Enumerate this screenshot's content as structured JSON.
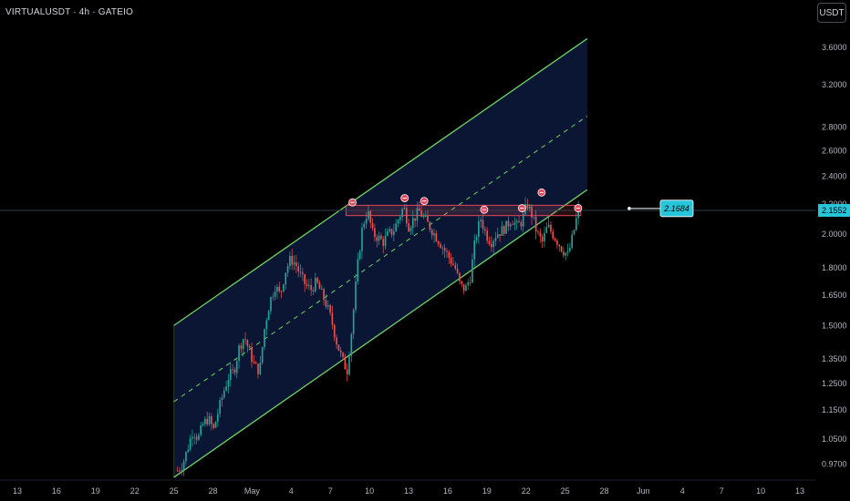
{
  "header": {
    "symbol": "VIRTUALUSDT",
    "interval": "4h",
    "exchange": "GATEIO",
    "title": "VIRTUALUSDT · 4h · GATEIO"
  },
  "toolbar": {
    "currency_label": "USDT"
  },
  "colors": {
    "background": "#000000",
    "channel_fill": "#0a1633",
    "channel_line": "#6fd464",
    "midline": "#6fd464",
    "resistance_box": "#e0475a",
    "bull_candle": "#26a69a",
    "bear_candle": "#ef5350",
    "price_line": "#2f3b4d",
    "callout": "#26c6da",
    "price_tag": "#26c6da",
    "marker": "#e0475a"
  },
  "chart_data": {
    "type": "candlestick",
    "scale": "log",
    "y_ticks": [
      "3.6000",
      "3.2000",
      "2.8000",
      "2.6000",
      "2.4000",
      "2.2000",
      "2.0000",
      "1.8000",
      "1.6500",
      "1.5000",
      "1.3500",
      "1.2500",
      "1.1500",
      "1.0500",
      "0.9700"
    ],
    "x_ticks": [
      "13",
      "16",
      "19",
      "22",
      "25",
      "28",
      "May",
      "4",
      "7",
      "10",
      "13",
      "16",
      "19",
      "22",
      "25",
      "28",
      "Jun",
      "4",
      "7",
      "10",
      "13"
    ],
    "current_price": "2.1552",
    "callout_price": "2.1684",
    "ylim": [
      0.93,
      3.8
    ],
    "channel": {
      "lower": [
        [
          "Apr 25",
          0.93
        ],
        [
          "May 26",
          2.3
        ]
      ],
      "upper": [
        [
          "Apr 25",
          1.5
        ],
        [
          "May 26",
          3.7
        ]
      ],
      "mid": [
        [
          "Apr 25",
          1.18
        ],
        [
          "May 26",
          2.9
        ]
      ]
    },
    "resistance_zone": [
      2.12,
      2.19
    ],
    "marker_count": 7,
    "price_path_close": [
      0.95,
      0.97,
      1.02,
      1.08,
      1.05,
      1.1,
      1.12,
      1.08,
      1.15,
      1.22,
      1.28,
      1.3,
      1.4,
      1.45,
      1.38,
      1.32,
      1.3,
      1.5,
      1.62,
      1.7,
      1.65,
      1.78,
      1.85,
      1.82,
      1.75,
      1.7,
      1.68,
      1.72,
      1.66,
      1.6,
      1.52,
      1.42,
      1.35,
      1.3,
      1.5,
      1.8,
      2.05,
      2.15,
      2.0,
      1.98,
      1.95,
      2.0,
      2.02,
      2.1,
      2.18,
      2.05,
      2.1,
      2.15,
      2.1,
      2.05,
      2.0,
      1.95,
      1.9,
      1.85,
      1.8,
      1.7,
      1.68,
      1.75,
      1.98,
      2.1,
      2.0,
      1.95,
      2.0,
      2.02,
      2.05,
      2.1,
      2.05,
      2.08,
      2.2,
      2.12,
      2.0,
      1.95,
      2.05,
      2.0,
      1.95,
      1.9,
      1.87,
      2.0,
      2.16
    ]
  }
}
